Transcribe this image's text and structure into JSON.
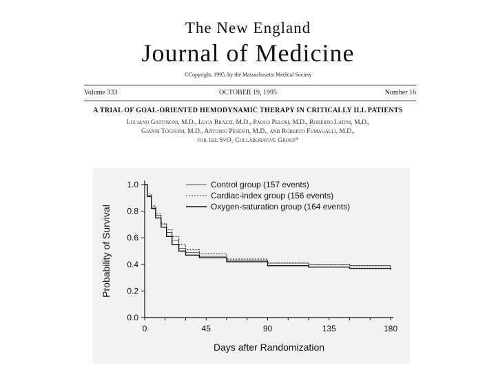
{
  "journal": {
    "line1": "The New England",
    "line2": "Journal of Medicine",
    "copyright": "©Copyright, 1995, by the Massachusetts Medical Society"
  },
  "issue": {
    "volume": "Volume 333",
    "date": "OCTOBER 19, 1995",
    "number": "Number 16"
  },
  "article": {
    "title": "A TRIAL OF GOAL-ORIENTED HEMODYNAMIC THERAPY IN CRITICALLY ILL PATIENTS",
    "authors": [
      "Luciano Gattinoni, M.D., Luca Brazzi, M.D., Paolo Pelosi, M.D., Roberto Latini, M.D.,",
      "Gianni Tognoni, M.D., Antonio Pesenti, M.D., and Roberto Fumagalli, M.D.,",
      "for the SvO₂ Collaborative Group*"
    ]
  },
  "chart_data": {
    "type": "line",
    "xlabel": "Days after Randomization",
    "ylabel": "Probability of Survival",
    "xlim": [
      0,
      180
    ],
    "ylim": [
      0,
      1.0
    ],
    "x_ticks": [
      0,
      45,
      90,
      135,
      180
    ],
    "y_ticks": [
      0.0,
      0.2,
      0.4,
      0.6,
      0.8,
      1.0
    ],
    "y_tick_labels": [
      "0.0",
      "0.2",
      "0.4",
      "0.6",
      "0.8",
      "1.0"
    ],
    "legend_position": "top-right",
    "grid": false,
    "series": [
      {
        "name": "Control group (157 events)",
        "style": "solid-thin",
        "color": "#555555",
        "points": [
          [
            0,
            1.0
          ],
          [
            2,
            0.92
          ],
          [
            5,
            0.83
          ],
          [
            8,
            0.77
          ],
          [
            12,
            0.7
          ],
          [
            16,
            0.64
          ],
          [
            20,
            0.58
          ],
          [
            25,
            0.52
          ],
          [
            30,
            0.49
          ],
          [
            40,
            0.46
          ],
          [
            60,
            0.43
          ],
          [
            90,
            0.41
          ],
          [
            120,
            0.4
          ],
          [
            150,
            0.39
          ],
          [
            180,
            0.37
          ]
        ]
      },
      {
        "name": "Cardiac-index group (156 events)",
        "style": "dotted",
        "color": "#222222",
        "points": [
          [
            0,
            1.0
          ],
          [
            2,
            0.93
          ],
          [
            5,
            0.84
          ],
          [
            8,
            0.78
          ],
          [
            12,
            0.71
          ],
          [
            16,
            0.66
          ],
          [
            20,
            0.61
          ],
          [
            25,
            0.55
          ],
          [
            30,
            0.51
          ],
          [
            40,
            0.48
          ],
          [
            60,
            0.44
          ],
          [
            90,
            0.41
          ],
          [
            120,
            0.4
          ],
          [
            150,
            0.39
          ],
          [
            180,
            0.38
          ]
        ]
      },
      {
        "name": "Oxygen-saturation group (164 events)",
        "style": "solid",
        "color": "#111111",
        "points": [
          [
            0,
            1.0
          ],
          [
            2,
            0.91
          ],
          [
            5,
            0.82
          ],
          [
            8,
            0.75
          ],
          [
            12,
            0.68
          ],
          [
            16,
            0.61
          ],
          [
            20,
            0.55
          ],
          [
            25,
            0.5
          ],
          [
            30,
            0.47
          ],
          [
            40,
            0.45
          ],
          [
            60,
            0.42
          ],
          [
            90,
            0.39
          ],
          [
            120,
            0.38
          ],
          [
            150,
            0.37
          ],
          [
            180,
            0.36
          ]
        ]
      }
    ]
  }
}
